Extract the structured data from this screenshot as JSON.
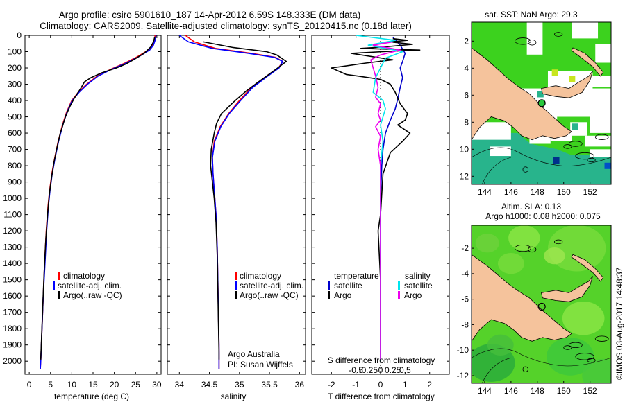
{
  "header": {
    "title_line1": "Argo profile: csiro 5901610_187 14-Apr-2012 6.59S 148.333E (DM data)",
    "title_line2": "Climatology: CARS2009. Satellite-adjusted climatology: synTS_20120415.nc (0.18d later)"
  },
  "colors": {
    "climatology": "#ff0000",
    "satellite": "#0000ff",
    "argo": "#000000",
    "temp_satellite": "#0000cc",
    "sal_satellite": "#00e5ee",
    "sal_argo": "#ee00ee",
    "land": "#f5c39c",
    "ocean_green": "#3cd21e",
    "ocean_teal": "#28b48c"
  },
  "chart_data": [
    {
      "type": "line",
      "name": "temperature-profile",
      "xlabel": "temperature (deg C)",
      "ylabel": "",
      "xlim": [
        -1,
        31
      ],
      "ylim": [
        2080,
        0
      ],
      "xticks": [
        0,
        5,
        10,
        15,
        20,
        25,
        30
      ],
      "yticks": [
        0,
        100,
        200,
        300,
        400,
        500,
        600,
        700,
        800,
        900,
        1000,
        1100,
        1200,
        1300,
        1400,
        1500,
        1600,
        1700,
        1800,
        1900,
        2000
      ],
      "legend": [
        "climatology",
        "satellite-adj. clim.",
        "Argo(..raw -QC)"
      ],
      "series": [
        {
          "name": "climatology",
          "color": "#ff0000",
          "points": [
            [
              29.6,
              0
            ],
            [
              29.4,
              30
            ],
            [
              29.0,
              60
            ],
            [
              28.0,
              90
            ],
            [
              25.5,
              130
            ],
            [
              22.5,
              170
            ],
            [
              19.0,
              210
            ],
            [
              16.0,
              250
            ],
            [
              13.5,
              300
            ],
            [
              11.5,
              350
            ],
            [
              10.0,
              400
            ],
            [
              8.8,
              470
            ],
            [
              7.8,
              550
            ],
            [
              6.8,
              650
            ],
            [
              6.0,
              750
            ],
            [
              5.3,
              850
            ],
            [
              4.8,
              950
            ],
            [
              4.4,
              1050
            ],
            [
              4.0,
              1200
            ],
            [
              3.6,
              1400
            ],
            [
              3.3,
              1600
            ],
            [
              3.0,
              1800
            ],
            [
              2.7,
              2000
            ],
            [
              2.6,
              2050
            ]
          ]
        },
        {
          "name": "satellite-adj. clim.",
          "color": "#0000ff",
          "points": [
            [
              29.8,
              0
            ],
            [
              29.6,
              30
            ],
            [
              29.2,
              60
            ],
            [
              28.3,
              90
            ],
            [
              25.8,
              130
            ],
            [
              22.8,
              170
            ],
            [
              19.2,
              210
            ],
            [
              16.2,
              250
            ],
            [
              13.7,
              300
            ],
            [
              11.7,
              350
            ],
            [
              10.1,
              400
            ],
            [
              8.9,
              470
            ],
            [
              7.9,
              550
            ],
            [
              6.9,
              650
            ],
            [
              6.1,
              750
            ],
            [
              5.4,
              850
            ],
            [
              4.9,
              950
            ],
            [
              4.5,
              1050
            ],
            [
              4.1,
              1200
            ],
            [
              3.7,
              1400
            ],
            [
              3.3,
              1600
            ],
            [
              3.0,
              1800
            ],
            [
              2.7,
              2000
            ],
            [
              2.6,
              2050
            ]
          ]
        },
        {
          "name": "Argo(..raw -QC)",
          "color": "#000000",
          "points": [
            [
              29.5,
              10
            ],
            [
              29.2,
              40
            ],
            [
              28.6,
              70
            ],
            [
              27.0,
              110
            ],
            [
              24.5,
              150
            ],
            [
              22.8,
              175
            ],
            [
              20.5,
              200
            ],
            [
              17.0,
              230
            ],
            [
              14.5,
              260
            ],
            [
              13.0,
              285
            ],
            [
              12.0,
              330
            ],
            [
              10.5,
              390
            ],
            [
              9.5,
              440
            ],
            [
              8.5,
              500
            ],
            [
              7.8,
              560
            ],
            [
              7.3,
              600
            ],
            [
              6.6,
              680
            ],
            [
              5.8,
              780
            ],
            [
              5.2,
              880
            ],
            [
              4.7,
              980
            ],
            [
              4.3,
              1100
            ],
            [
              3.9,
              1250
            ],
            [
              3.5,
              1450
            ],
            [
              3.2,
              1650
            ],
            [
              2.9,
              1850
            ],
            [
              2.7,
              1990
            ]
          ]
        }
      ]
    },
    {
      "type": "line",
      "name": "salinity-profile",
      "xlabel": "salinity",
      "xlim": [
        33.8,
        36.1
      ],
      "ylim": [
        2080,
        0
      ],
      "xticks": [
        34,
        34.5,
        35,
        35.5,
        36
      ],
      "legend": [
        "climatology",
        "satellite-adj. clim.",
        "Argo(..raw -QC)"
      ],
      "annotation": [
        "Argo Australia",
        "PI: Susan Wijffels"
      ],
      "series": [
        {
          "name": "climatology",
          "color": "#ff0000",
          "points": [
            [
              34.1,
              0
            ],
            [
              34.25,
              40
            ],
            [
              34.6,
              80
            ],
            [
              35.2,
              110
            ],
            [
              35.6,
              135
            ],
            [
              35.72,
              160
            ],
            [
              35.65,
              200
            ],
            [
              35.45,
              250
            ],
            [
              35.2,
              320
            ],
            [
              35.0,
              400
            ],
            [
              34.82,
              480
            ],
            [
              34.68,
              560
            ],
            [
              34.58,
              650
            ],
            [
              34.55,
              750
            ],
            [
              34.56,
              850
            ],
            [
              34.58,
              950
            ],
            [
              34.61,
              1100
            ],
            [
              34.63,
              1300
            ],
            [
              34.64,
              1500
            ],
            [
              34.65,
              1700
            ],
            [
              34.66,
              1900
            ],
            [
              34.66,
              2050
            ]
          ]
        },
        {
          "name": "satellite-adj. clim.",
          "color": "#0000ff",
          "points": [
            [
              34.0,
              0
            ],
            [
              34.15,
              40
            ],
            [
              34.55,
              80
            ],
            [
              35.15,
              110
            ],
            [
              35.58,
              135
            ],
            [
              35.72,
              160
            ],
            [
              35.66,
              200
            ],
            [
              35.47,
              250
            ],
            [
              35.22,
              320
            ],
            [
              35.02,
              400
            ],
            [
              34.83,
              480
            ],
            [
              34.69,
              560
            ],
            [
              34.59,
              650
            ],
            [
              34.55,
              750
            ],
            [
              34.56,
              850
            ],
            [
              34.58,
              950
            ],
            [
              34.61,
              1100
            ],
            [
              34.63,
              1300
            ],
            [
              34.64,
              1500
            ],
            [
              34.65,
              1700
            ],
            [
              34.66,
              1900
            ],
            [
              34.66,
              2050
            ]
          ]
        },
        {
          "name": "Argo(..raw -QC)",
          "color": "#000000",
          "points": [
            [
              34.4,
              40
            ],
            [
              34.9,
              75
            ],
            [
              35.45,
              100
            ],
            [
              35.62,
              120
            ],
            [
              35.78,
              160
            ],
            [
              35.6,
              210
            ],
            [
              35.45,
              250
            ],
            [
              35.3,
              290
            ],
            [
              35.12,
              340
            ],
            [
              34.9,
              410
            ],
            [
              34.7,
              480
            ],
            [
              34.62,
              540
            ],
            [
              34.58,
              600
            ],
            [
              34.53,
              700
            ],
            [
              34.52,
              800
            ],
            [
              34.55,
              900
            ],
            [
              34.58,
              1000
            ],
            [
              34.61,
              1150
            ],
            [
              34.63,
              1350
            ],
            [
              34.64,
              1550
            ],
            [
              34.65,
              1750
            ],
            [
              34.66,
              1950
            ],
            [
              34.66,
              1990
            ]
          ]
        }
      ]
    },
    {
      "type": "line",
      "name": "difference-profile",
      "xlabel": "T difference from climatology",
      "xlabel_top": "S difference from climatology",
      "xlim": [
        -2.8,
        2.8
      ],
      "ylim": [
        2080,
        0
      ],
      "xticks_bottom": [
        -2,
        -1,
        0,
        1,
        2
      ],
      "xticks_top_labels": [
        "-0.5",
        "-0.25",
        "0",
        "0.25",
        "0.5"
      ],
      "legend_temperature_title": "temperature",
      "legend_salinity_title": "salinity",
      "legend": [
        "satellite",
        "Argo",
        "satellite",
        "Argo"
      ],
      "series": [
        {
          "name": "temperature satellite",
          "color": "#0000cc",
          "points": [
            [
              0.5,
              10
            ],
            [
              0.8,
              60
            ],
            [
              1.0,
              110
            ],
            [
              0.9,
              160
            ],
            [
              0.8,
              200
            ],
            [
              0.9,
              260
            ],
            [
              0.8,
              320
            ],
            [
              0.7,
              390
            ],
            [
              0.6,
              450
            ],
            [
              0.4,
              520
            ],
            [
              0.2,
              600
            ],
            [
              0.1,
              700
            ],
            [
              0.05,
              800
            ],
            [
              0.0,
              1000
            ],
            [
              0.0,
              1400
            ],
            [
              0.0,
              2000
            ]
          ]
        },
        {
          "name": "temperature Argo",
          "color": "#000000",
          "points": [
            [
              0.5,
              20
            ],
            [
              1.1,
              30
            ],
            [
              0.4,
              40
            ],
            [
              1.3,
              55
            ],
            [
              0.2,
              70
            ],
            [
              -0.8,
              80
            ],
            [
              1.6,
              90
            ],
            [
              0.1,
              100
            ],
            [
              -1.2,
              110
            ],
            [
              0.5,
              150
            ],
            [
              -0.6,
              170
            ],
            [
              -2.0,
              200
            ],
            [
              -1.4,
              240
            ],
            [
              -0.9,
              250
            ],
            [
              0.0,
              270
            ],
            [
              0.4,
              300
            ],
            [
              0.6,
              350
            ],
            [
              0.8,
              420
            ],
            [
              1.1,
              480
            ],
            [
              1.0,
              520
            ],
            [
              0.7,
              550
            ],
            [
              1.2,
              600
            ],
            [
              0.9,
              650
            ],
            [
              0.4,
              720
            ],
            [
              0.1,
              850
            ],
            [
              0.0,
              1100
            ],
            [
              -0.1,
              1200
            ],
            [
              0.0,
              1500
            ],
            [
              0.0,
              1990
            ]
          ]
        },
        {
          "name": "salinity satellite",
          "color": "#00e5ee",
          "points": [
            [
              -1.0,
              0
            ],
            [
              0.6,
              30
            ],
            [
              -0.5,
              60
            ],
            [
              0.9,
              100
            ],
            [
              0.2,
              140
            ],
            [
              0.0,
              200
            ],
            [
              -0.2,
              260
            ],
            [
              -0.3,
              350
            ],
            [
              0.1,
              400
            ],
            [
              0.2,
              450
            ],
            [
              0.0,
              550
            ],
            [
              0.1,
              650
            ],
            [
              0.0,
              800
            ],
            [
              0.0,
              2000
            ]
          ]
        },
        {
          "name": "salinity Argo",
          "color": "#ee00ee",
          "points": [
            [
              0.5,
              40
            ],
            [
              -0.3,
              60
            ],
            [
              0.8,
              90
            ],
            [
              0.0,
              120
            ],
            [
              -0.4,
              150
            ],
            [
              -0.3,
              200
            ],
            [
              -0.2,
              250
            ],
            [
              -0.1,
              320
            ],
            [
              -0.2,
              380
            ],
            [
              0.0,
              420
            ],
            [
              -0.1,
              480
            ],
            [
              0.0,
              520
            ],
            [
              -0.2,
              560
            ],
            [
              0.0,
              620
            ],
            [
              -0.1,
              700
            ],
            [
              0.0,
              800
            ],
            [
              0.0,
              1000
            ],
            [
              0.0,
              1990
            ]
          ]
        }
      ]
    },
    {
      "type": "heatmap",
      "name": "sst-map",
      "title": "sat. SST: NaN Argo: 29.3",
      "xlim": [
        143,
        153.6
      ],
      "ylim": [
        -12.6,
        -0.6
      ],
      "xticks": [
        144,
        146,
        148,
        150,
        152
      ],
      "yticks": [
        -2,
        -4,
        -6,
        -8,
        -10,
        -12
      ],
      "argo_position": [
        148.333,
        -6.59
      ]
    },
    {
      "type": "heatmap",
      "name": "sla-map",
      "title_line1": "Altim. SLA: 0.13",
      "title_line2": "Argo h1000: 0.08 h2000: 0.075",
      "xlim": [
        143,
        153.6
      ],
      "ylim": [
        -12.6,
        -0.2
      ],
      "xticks": [
        144,
        146,
        148,
        150,
        152
      ],
      "yticks": [
        -2,
        -4,
        -6,
        -8,
        -10,
        -12
      ],
      "argo_position": [
        148.333,
        -6.59
      ]
    }
  ],
  "footer": {
    "credit": "©IMOS 03-Aug-2017 14:48:37"
  }
}
